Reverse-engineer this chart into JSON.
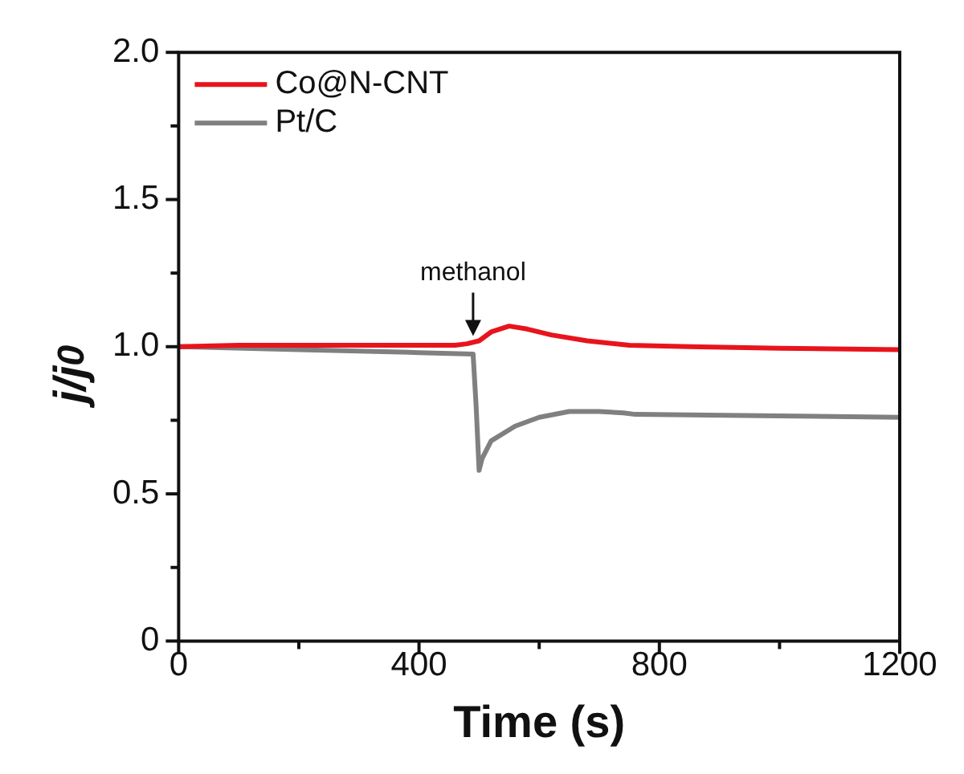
{
  "chart_data": {
    "type": "line",
    "xlabel": "Time (s)",
    "ylabel": "j/j$_{0}$",
    "xlim": [
      0,
      1200
    ],
    "ylim": [
      0,
      2.0
    ],
    "xticks": [
      0,
      {
        "value": 200,
        "label": null
      },
      400,
      {
        "value": 600,
        "label": null
      },
      800,
      {
        "value": 1000,
        "label": null
      },
      1200
    ],
    "yticks": [
      0,
      {
        "value": 0.25,
        "label": null
      },
      0.5,
      {
        "value": 0.75,
        "label": null
      },
      "1.0",
      {
        "value": 1.25,
        "label": null
      },
      1.5,
      {
        "value": 1.75,
        "label": null
      },
      "2.0"
    ],
    "legend": "top left",
    "grid": false,
    "marker": "none",
    "line_style": "solid",
    "annotations": [
      {
        "text": "methanol",
        "x": 490,
        "y": 1.02
      }
    ],
    "series": [
      {
        "name": "Co@N-CNT",
        "color": "#e8141c",
        "x": [
          0,
          100,
          200,
          300,
          400,
          460,
          480,
          500,
          520,
          550,
          580,
          620,
          680,
          750,
          850,
          1000,
          1200
        ],
        "values": [
          1.0,
          1.005,
          1.005,
          1.005,
          1.005,
          1.005,
          1.01,
          1.02,
          1.05,
          1.07,
          1.06,
          1.04,
          1.02,
          1.005,
          1.0,
          0.995,
          0.99
        ]
      },
      {
        "name": "Pt/C",
        "color": "#808080",
        "x": [
          0,
          200,
          400,
          490,
          495,
          500,
          505,
          520,
          560,
          600,
          650,
          700,
          740,
          760,
          1000,
          1200
        ],
        "values": [
          1.0,
          0.99,
          0.98,
          0.975,
          0.8,
          0.58,
          0.62,
          0.68,
          0.73,
          0.76,
          0.78,
          0.78,
          0.775,
          0.77,
          0.765,
          0.76
        ]
      }
    ]
  }
}
